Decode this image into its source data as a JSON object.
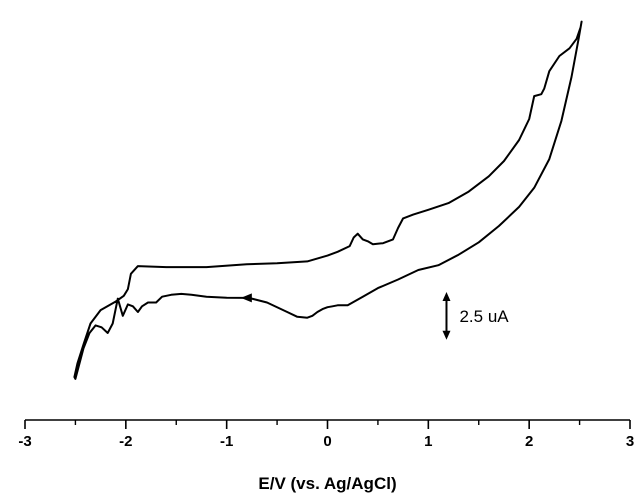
{
  "chart_data": {
    "type": "line",
    "title": "",
    "xlabel": "E/V (vs. Ag/AgCl)",
    "ylabel": "",
    "xlim": [
      -3,
      3
    ],
    "ylim": [
      -5.2,
      15
    ],
    "xticks": [
      -3,
      -2,
      -1,
      0,
      1,
      2,
      3
    ],
    "xtick_labels": [
      "-3",
      "-2",
      "-1",
      "0",
      "1",
      "2",
      "3"
    ],
    "y_axis_shown": false,
    "grid": false,
    "line_color": "#000000",
    "scale_bar": {
      "label": "2.5 uA",
      "value": 2.5,
      "center_x": 1.18,
      "center_y": -0.9
    },
    "direction_arrow": {
      "x": -0.78,
      "y": 0.04,
      "pointing": "left"
    },
    "series": [
      {
        "x": [
          2.52,
          2.51,
          2.47,
          2.4,
          2.3,
          2.2,
          2.15,
          2.12,
          2.05,
          2.0,
          1.9,
          1.75,
          1.6,
          1.4,
          1.2,
          1.0,
          0.85,
          0.75,
          0.7,
          0.65,
          0.55,
          0.45,
          0.4,
          0.35,
          0.3,
          0.26,
          0.22,
          0.1,
          0.0,
          -0.2,
          -0.5,
          -0.8,
          -1.2,
          -1.6,
          -1.88,
          -1.95,
          -1.98,
          -2.02,
          -2.1,
          -2.25,
          -2.35,
          -2.42,
          -2.48,
          -2.51,
          -2.5,
          -2.42,
          -2.36,
          -2.3,
          -2.24,
          -2.18,
          -2.13,
          -2.08,
          -2.03,
          -1.98,
          -1.93,
          -1.88,
          -1.84,
          -1.78,
          -1.7,
          -1.64,
          -1.55,
          -1.45,
          -1.35,
          -1.2,
          -1.0,
          -0.78,
          -0.6,
          -0.4,
          -0.3,
          -0.2,
          -0.15,
          -0.1,
          -0.05,
          0.0,
          0.05,
          0.1,
          0.2,
          0.35,
          0.5,
          0.7,
          0.9,
          1.1,
          1.3,
          1.5,
          1.7,
          1.9,
          2.05,
          2.2,
          2.32,
          2.42,
          2.49,
          2.52
        ],
        "y": [
          14.5,
          14.2,
          13.6,
          13.1,
          12.7,
          11.9,
          11.0,
          10.7,
          10.6,
          9.4,
          8.3,
          7.2,
          6.4,
          5.6,
          5.0,
          4.65,
          4.4,
          4.2,
          3.7,
          3.1,
          2.9,
          2.85,
          3.0,
          3.1,
          3.4,
          3.2,
          2.75,
          2.45,
          2.25,
          1.95,
          1.85,
          1.8,
          1.65,
          1.65,
          1.7,
          1.3,
          0.5,
          0.15,
          -0.15,
          -0.6,
          -1.3,
          -2.4,
          -3.4,
          -4.1,
          -4.2,
          -2.6,
          -1.8,
          -1.4,
          -1.5,
          -1.8,
          -1.3,
          0.0,
          -0.9,
          -0.3,
          -0.4,
          -0.7,
          -0.4,
          -0.2,
          -0.2,
          0.1,
          0.2,
          0.25,
          0.2,
          0.1,
          0.05,
          0.04,
          -0.2,
          -0.7,
          -0.95,
          -1.0,
          -0.9,
          -0.7,
          -0.55,
          -0.45,
          -0.4,
          -0.35,
          -0.35,
          0.1,
          0.55,
          1.0,
          1.5,
          1.75,
          2.3,
          2.95,
          3.8,
          4.8,
          5.8,
          7.3,
          9.3,
          11.6,
          13.6,
          14.5
        ]
      }
    ]
  }
}
